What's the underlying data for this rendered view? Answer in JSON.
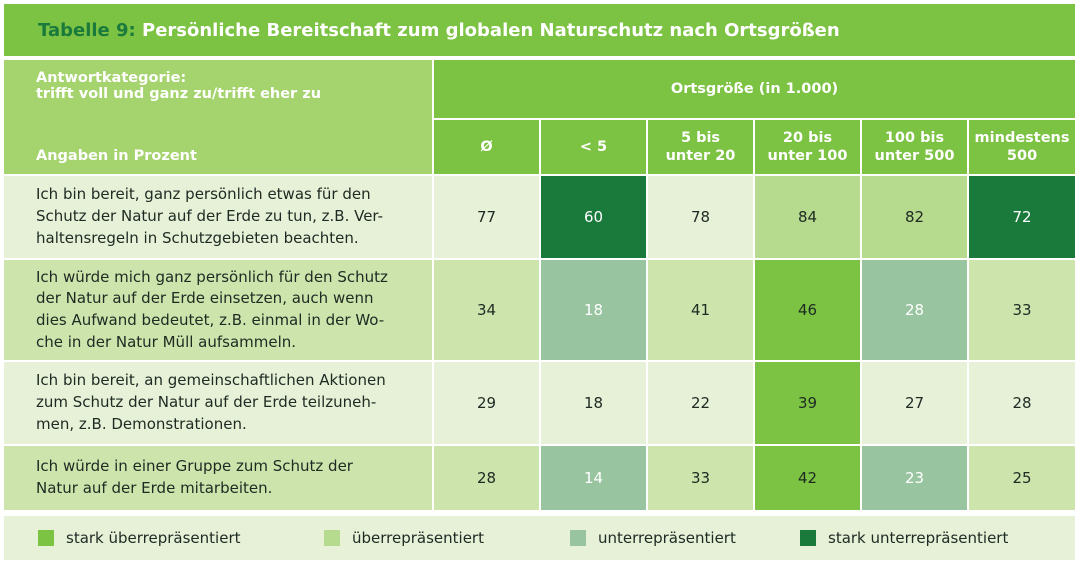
{
  "title": {
    "prefix": "Tabelle 9:",
    "text": " Persönliche Bereitschaft zum globalen Naturschutz nach Ortsgrößen"
  },
  "header": {
    "left_line1": "Antwortkategorie:",
    "left_line2": "trifft voll und ganz zu/trifft eher zu",
    "left_line3": "Angaben in Prozent",
    "group_label": "Ortsgröße (in 1.000)",
    "columns": [
      {
        "l1": "Ø",
        "l2": ""
      },
      {
        "l1": "< 5",
        "l2": ""
      },
      {
        "l1": "5 bis",
        "l2": "unter 20"
      },
      {
        "l1": "20 bis",
        "l2": "unter 100"
      },
      {
        "l1": "100 bis",
        "l2": "unter 500"
      },
      {
        "l1": "mindestens",
        "l2": "500"
      }
    ]
  },
  "rows": [
    {
      "lines": [
        "Ich bin bereit, ganz persönlich etwas für den",
        "Schutz der Natur auf der Erde zu tun, z.B. Ver-",
        "haltensregeln in Schutzgebieten beachten."
      ],
      "values": [
        "77",
        "60",
        "78",
        "84",
        "82",
        "72"
      ],
      "marks": [
        "",
        "sunder",
        "",
        "over",
        "over",
        "sunder"
      ]
    },
    {
      "lines": [
        "Ich würde mich ganz persönlich für den Schutz",
        "der Natur auf der Erde einsetzen, auch wenn",
        "dies Aufwand bedeutet, z.B. einmal in der Wo-",
        "che in der Natur Müll aufsammeln."
      ],
      "values": [
        "34",
        "18",
        "41",
        "46",
        "28",
        "33"
      ],
      "marks": [
        "",
        "under",
        "",
        "sover",
        "under",
        ""
      ]
    },
    {
      "lines": [
        "Ich bin bereit, an gemeinschaftlichen Aktionen",
        "zum Schutz der Natur auf der Erde teilzuneh-",
        "men, z.B. Demonstrationen."
      ],
      "values": [
        "29",
        "18",
        "22",
        "39",
        "27",
        "28"
      ],
      "marks": [
        "",
        "",
        "",
        "sover",
        "",
        ""
      ]
    },
    {
      "lines": [
        "Ich würde in einer Gruppe zum Schutz der",
        "Natur auf der Erde mitarbeiten."
      ],
      "values": [
        "28",
        "14",
        "33",
        "42",
        "23",
        "25"
      ],
      "marks": [
        "",
        "under",
        "",
        "sover",
        "under",
        ""
      ]
    }
  ],
  "legend": [
    {
      "label": "stark überrepräsentiert",
      "color": "#7cc243"
    },
    {
      "label": "überrepräsentiert",
      "color": "#b6da8e"
    },
    {
      "label": "unterrepräsentiert",
      "color": "#99c4a0"
    },
    {
      "label": "stark unterrepräsentiert",
      "color": "#1a7a3c"
    }
  ]
}
